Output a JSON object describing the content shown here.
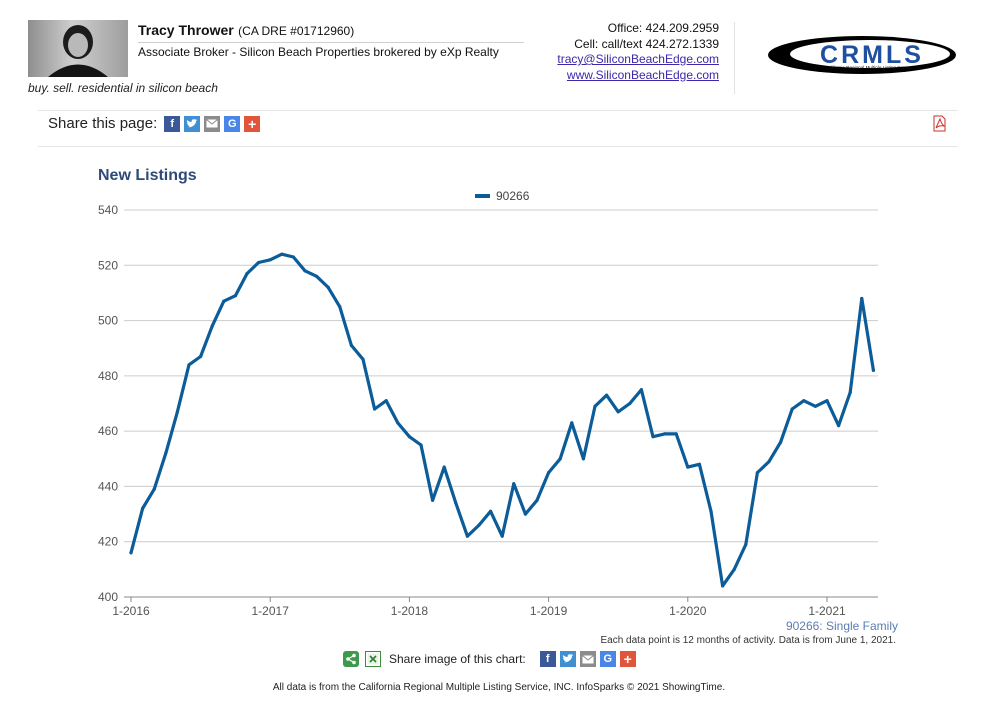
{
  "header": {
    "agent_name": "Tracy Thrower",
    "agent_dre": "(CA DRE #01712960)",
    "agent_title": "Associate Broker - Silicon Beach Properties brokered by eXp Realty",
    "tagline": "buy. sell. residential in silicon beach",
    "office": "Office: 424.209.2959",
    "cell": "Cell: call/text 424.272.1339",
    "email": "tracy@SiliconBeachEdge.com",
    "website": "www.SiliconBeachEdge.com",
    "logo_text": "CRMLS",
    "logo_subtext": "California Regional Multiple Listing Service, Inc."
  },
  "share": {
    "label": "Share this page:",
    "icons": [
      "facebook-icon",
      "twitter-icon",
      "email-icon",
      "google-icon",
      "plus-icon"
    ]
  },
  "colors": {
    "line": "#0b5c99",
    "title": "#2d4a78",
    "grid": "#cccccc"
  },
  "chart_data": {
    "type": "line",
    "title": "New Listings",
    "xlabel": "",
    "ylabel": "",
    "ylim": [
      400,
      540
    ],
    "yticks": [
      400,
      420,
      440,
      460,
      480,
      500,
      520,
      540
    ],
    "xtick_labels": [
      "1-2016",
      "1-2017",
      "1-2018",
      "1-2019",
      "1-2020",
      "1-2021"
    ],
    "x_start": "2016-01",
    "x_step": "1 month",
    "grid": true,
    "legend_position": "top-center",
    "series": [
      {
        "name": "90266",
        "values": [
          416,
          432,
          439,
          452,
          467,
          484,
          487,
          498,
          507,
          509,
          517,
          521,
          522,
          524,
          523,
          518,
          516,
          512,
          505,
          491,
          486,
          468,
          471,
          463,
          458,
          455,
          435,
          447,
          434,
          422,
          426,
          431,
          422,
          441,
          430,
          435,
          445,
          450,
          463,
          450,
          469,
          473,
          467,
          470,
          475,
          458,
          459,
          459,
          447,
          448,
          431,
          404,
          410,
          419,
          445,
          449,
          456,
          468,
          471,
          469,
          471,
          462,
          474,
          508,
          482
        ]
      }
    ]
  },
  "notes": {
    "series_label": "90266: Single Family",
    "data_note": "Each data point is 12 months of activity. Data is from June 1, 2021.",
    "share_image_label": "Share image of this chart:",
    "footer": "All data is from the California Regional Multiple Listing Service, INC. InfoSparks © 2021 ShowingTime."
  }
}
